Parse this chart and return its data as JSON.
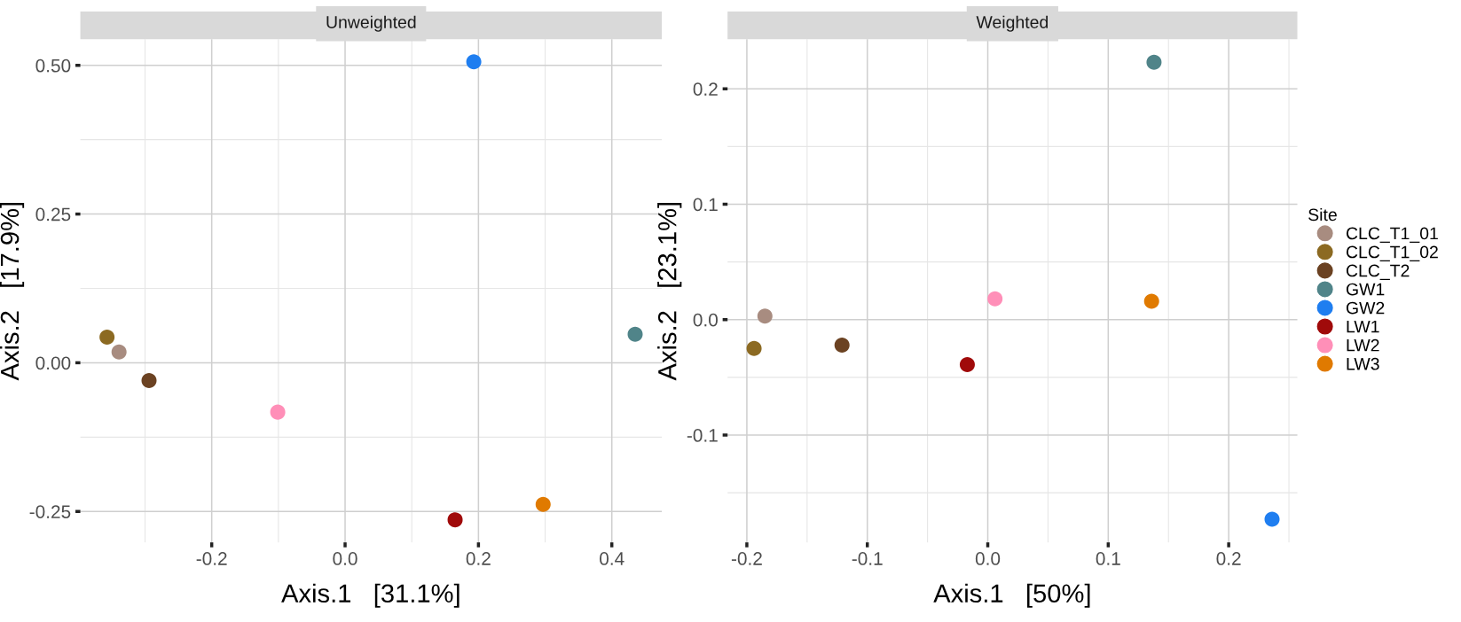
{
  "chart_data": [
    {
      "type": "scatter",
      "title": "Unweighted",
      "xlabel": "Axis.1   [31.1%]",
      "ylabel": "Axis.2   [17.9%]",
      "xlim": [
        -0.397,
        0.475
      ],
      "ylim": [
        -0.302,
        0.544
      ],
      "xticks": [
        -0.2,
        {
          "value": 0,
          "label": "0.0"
        },
        0.2,
        0.4
      ],
      "yticks": [
        {
          "value": 0.5,
          "label": "0.50"
        },
        {
          "value": 0.25,
          "label": "0.25"
        },
        {
          "value": 0,
          "label": "0.00"
        },
        {
          "value": -0.25,
          "label": "-0.25"
        }
      ],
      "grid": true,
      "marker": "circle",
      "series": [
        {
          "color": "#a88c80",
          "x": [
            -0.339
          ],
          "values": [
            0.018
          ]
        },
        {
          "color": "#8c6a22",
          "x": [
            -0.357
          ],
          "values": [
            0.043
          ]
        },
        {
          "color": "#6b4222",
          "x": [
            -0.294
          ],
          "values": [
            -0.03
          ]
        },
        {
          "color": "#508489",
          "x": [
            0.435
          ],
          "values": [
            0.048
          ]
        },
        {
          "color": "#1f7ef0",
          "x": [
            0.193
          ],
          "values": [
            0.506
          ]
        },
        {
          "color": "#a00a0a",
          "x": [
            0.165
          ],
          "values": [
            -0.264
          ]
        },
        {
          "color": "#ff8fb8",
          "x": [
            -0.101
          ],
          "values": [
            -0.083
          ]
        },
        {
          "color": "#e07a00",
          "x": [
            0.297
          ],
          "values": [
            -0.238
          ]
        }
      ]
    },
    {
      "type": "scatter",
      "title": "Weighted",
      "xlabel": "Axis.1   [50%]",
      "ylabel": "Axis.2   [23.1%]",
      "xlim": [
        -0.216,
        0.257
      ],
      "ylim": [
        -0.193,
        0.243
      ],
      "xticks": [
        -0.2,
        -0.1,
        {
          "value": 0,
          "label": "0.0"
        },
        0.1,
        0.2
      ],
      "yticks": [
        0.2,
        0.1,
        {
          "value": 0,
          "label": "0.0"
        },
        -0.1
      ],
      "grid": true,
      "legend": "right",
      "legend_title": "Site",
      "marker": "circle",
      "series": [
        {
          "name": "CLC_T1_01",
          "color": "#a88c80",
          "x": [
            -0.185
          ],
          "values": [
            0.003
          ]
        },
        {
          "name": "CLC_T1_02",
          "color": "#8c6a22",
          "x": [
            -0.194
          ],
          "values": [
            -0.025
          ]
        },
        {
          "name": "CLC_T2",
          "color": "#6b4222",
          "x": [
            -0.121
          ],
          "values": [
            -0.022
          ]
        },
        {
          "name": "GW1",
          "color": "#508489",
          "x": [
            0.138
          ],
          "values": [
            0.223
          ]
        },
        {
          "name": "GW2",
          "color": "#1f7ef0",
          "x": [
            0.236
          ],
          "values": [
            -0.173
          ]
        },
        {
          "name": "LW1",
          "color": "#a00a0a",
          "x": [
            -0.017
          ],
          "values": [
            -0.039
          ]
        },
        {
          "name": "LW2",
          "color": "#ff8fb8",
          "x": [
            0.006
          ],
          "values": [
            0.018
          ]
        },
        {
          "name": "LW3",
          "color": "#e07a00",
          "x": [
            0.136
          ],
          "values": [
            0.016
          ]
        }
      ]
    }
  ]
}
